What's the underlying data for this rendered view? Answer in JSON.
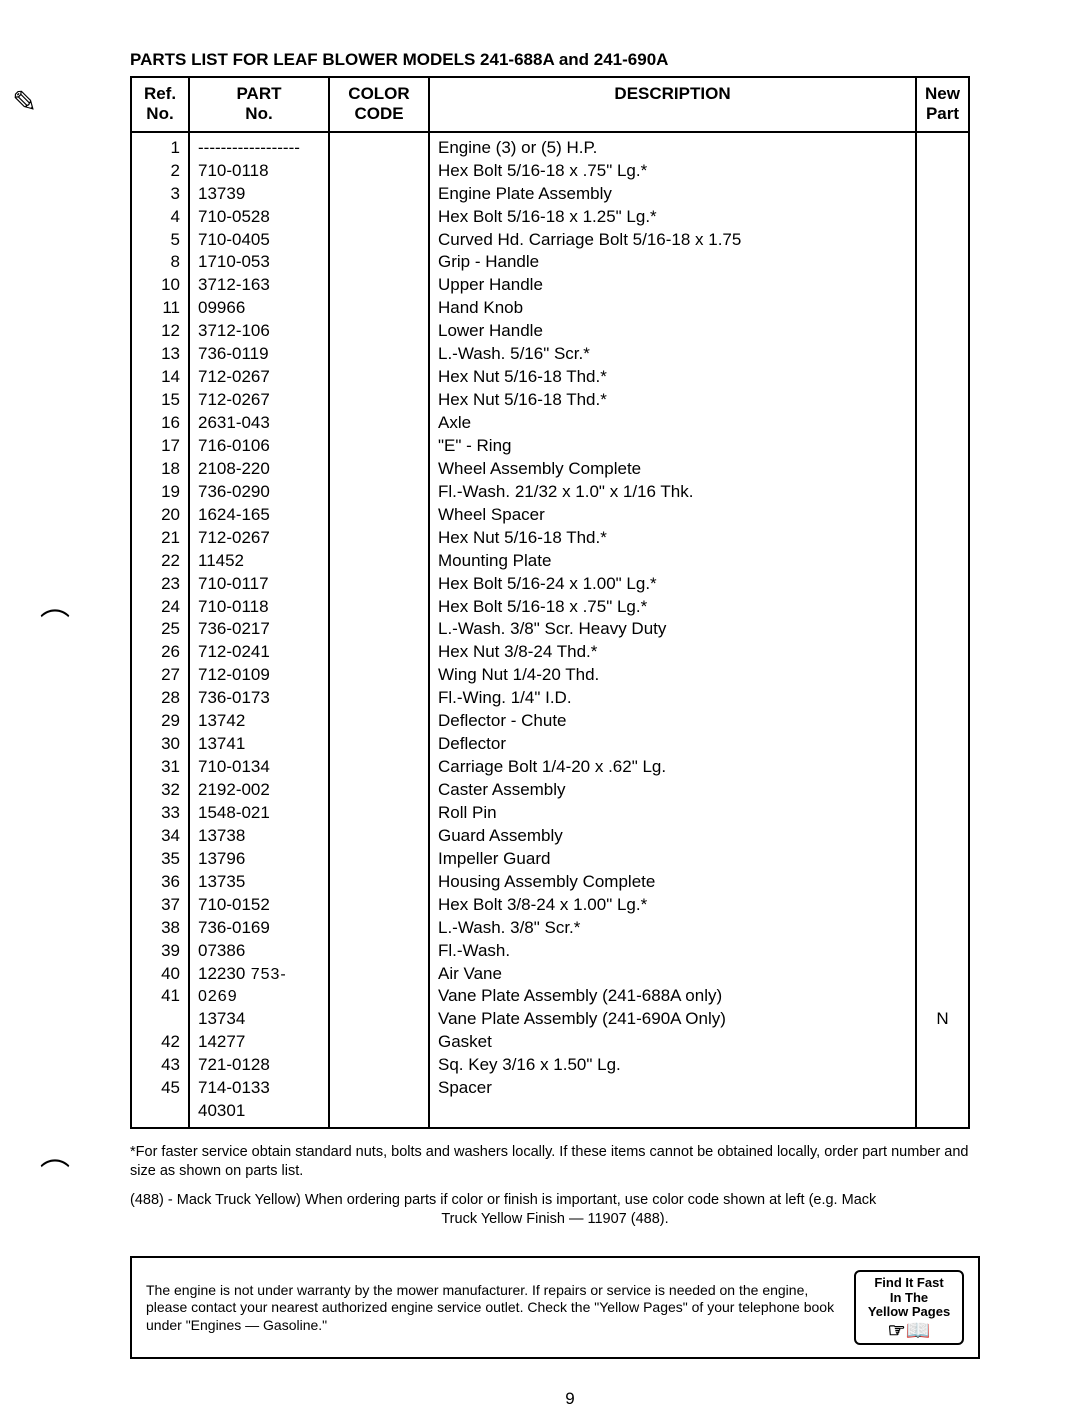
{
  "title": "PARTS LIST FOR LEAF BLOWER MODELS 241-688A and 241-690A",
  "headers": {
    "ref": "Ref.\nNo.",
    "part": "PART\nNo.",
    "color": "COLOR\nCODE",
    "desc": "DESCRIPTION",
    "new": "New\nPart"
  },
  "rows": [
    {
      "ref": "1",
      "part": "------------------",
      "desc": "Engine (3) or (5) H.P.",
      "new": ""
    },
    {
      "ref": "2",
      "part": "710-0118",
      "desc": "Hex Bolt 5/16-18 x .75\" Lg.*",
      "new": ""
    },
    {
      "ref": "3",
      "part": "13739",
      "desc": "Engine Plate Assembly",
      "new": ""
    },
    {
      "ref": "4",
      "part": "710-0528",
      "desc": "Hex Bolt 5/16-18 x 1.25\" Lg.*",
      "new": ""
    },
    {
      "ref": "5",
      "part": "710-0405",
      "desc": "Curved Hd. Carriage Bolt 5/16-18 x 1.75",
      "new": ""
    },
    {
      "ref": "8",
      "part": "1710-053",
      "desc": "Grip - Handle",
      "new": ""
    },
    {
      "ref": "10",
      "part": "3712-163",
      "desc": "Upper Handle",
      "new": ""
    },
    {
      "ref": "11",
      "part": "09966",
      "desc": "Hand Knob",
      "new": ""
    },
    {
      "ref": "12",
      "part": "3712-106",
      "desc": "Lower Handle",
      "new": ""
    },
    {
      "ref": "13",
      "part": "736-0119",
      "desc": "L.-Wash. 5/16\" Scr.*",
      "new": ""
    },
    {
      "ref": "14",
      "part": "712-0267",
      "desc": "Hex Nut 5/16-18 Thd.*",
      "new": ""
    },
    {
      "ref": "15",
      "part": "712-0267",
      "desc": "Hex Nut 5/16-18 Thd.*",
      "new": ""
    },
    {
      "ref": "16",
      "part": "2631-043",
      "desc": "Axle",
      "new": ""
    },
    {
      "ref": "17",
      "part": "716-0106",
      "desc": "\"E\" - Ring",
      "new": ""
    },
    {
      "ref": "18",
      "part": "2108-220",
      "desc": "Wheel Assembly Complete",
      "new": ""
    },
    {
      "ref": "19",
      "part": "736-0290",
      "desc": "Fl.-Wash. 21/32 x 1.0\" x 1/16 Thk.",
      "new": ""
    },
    {
      "ref": "20",
      "part": "1624-165",
      "desc": "Wheel Spacer",
      "new": ""
    },
    {
      "ref": "21",
      "part": "712-0267",
      "desc": "Hex Nut 5/16-18 Thd.*",
      "new": ""
    },
    {
      "ref": "22",
      "part": "11452",
      "desc": "Mounting Plate",
      "new": ""
    },
    {
      "ref": "23",
      "part": "710-0117",
      "desc": "Hex Bolt 5/16-24 x 1.00\" Lg.*",
      "new": ""
    },
    {
      "ref": "24",
      "part": "710-0118",
      "desc": "Hex Bolt 5/16-18 x .75\" Lg.*",
      "new": ""
    },
    {
      "ref": "25",
      "part": "736-0217",
      "desc": "L.-Wash. 3/8\" Scr. Heavy Duty",
      "new": ""
    },
    {
      "ref": "26",
      "part": "712-0241",
      "desc": "Hex Nut 3/8-24 Thd.*",
      "new": ""
    },
    {
      "ref": "27",
      "part": "712-0109",
      "desc": "Wing Nut 1/4-20 Thd.",
      "new": ""
    },
    {
      "ref": "28",
      "part": "736-0173",
      "desc": "Fl.-Wing. 1/4\" I.D.",
      "new": ""
    },
    {
      "ref": "29",
      "part": "13742",
      "desc": "Deflector - Chute",
      "new": ""
    },
    {
      "ref": "30",
      "part": "13741",
      "desc": "Deflector",
      "new": ""
    },
    {
      "ref": "31",
      "part": "710-0134",
      "desc": "Carriage Bolt 1/4-20 x .62\" Lg.",
      "new": ""
    },
    {
      "ref": "32",
      "part": "2192-002",
      "desc": "Caster Assembly",
      "new": ""
    },
    {
      "ref": "33",
      "part": "1548-021",
      "desc": "Roll Pin",
      "new": ""
    },
    {
      "ref": "34",
      "part": "13738",
      "desc": "Guard Assembly",
      "new": ""
    },
    {
      "ref": "35",
      "part": "13796",
      "desc": "Impeller Guard",
      "new": ""
    },
    {
      "ref": "36",
      "part": "13735",
      "desc": "Housing Assembly Complete",
      "new": ""
    },
    {
      "ref": "37",
      "part": "710-0152",
      "desc": "Hex Bolt 3/8-24 x 1.00\" Lg.*",
      "new": ""
    },
    {
      "ref": "38",
      "part": "736-0169",
      "desc": "L.-Wash. 3/8\" Scr.*",
      "new": ""
    },
    {
      "ref": "39",
      "part": "07386",
      "desc": "Fl.-Wash.",
      "new": ""
    },
    {
      "ref": "40",
      "part": "12230",
      "handnote": "753-0269",
      "desc": "Air Vane",
      "new": ""
    },
    {
      "ref": "41",
      "part": "13734",
      "desc": "Vane Plate Assembly (241-688A only)",
      "new": ""
    },
    {
      "ref": "",
      "part": "14277",
      "desc": "Vane Plate Assembly (241-690A Only)",
      "new": "N"
    },
    {
      "ref": "42",
      "part": "721-0128",
      "desc": "Gasket",
      "new": ""
    },
    {
      "ref": "43",
      "part": "714-0133",
      "desc": "Sq. Key 3/16 x 1.50\" Lg.",
      "new": ""
    },
    {
      "ref": "45",
      "part": "40301",
      "desc": "Spacer",
      "new": ""
    }
  ],
  "footnote1": "*For faster service obtain standard nuts, bolts and washers locally. If these items cannot be obtained locally, order part number and size as shown on parts list.",
  "footnote2_a": "(488) - Mack Truck Yellow) When ordering parts if color or finish is important, use color code shown at left (e.g. Mack",
  "footnote2_b": "Truck Yellow Finish — 11907 (488).",
  "notice": "The engine is not under warranty by the mower manufacturer. If repairs or service is needed on the engine, please contact your nearest authorized engine service outlet. Check the \"Yellow Pages\" of your telephone book under \"Engines — Gasoline.\"",
  "yp_line1": "Find It Fast",
  "yp_line2": "In The",
  "yp_line3": "Yellow Pages",
  "page_number": "9"
}
